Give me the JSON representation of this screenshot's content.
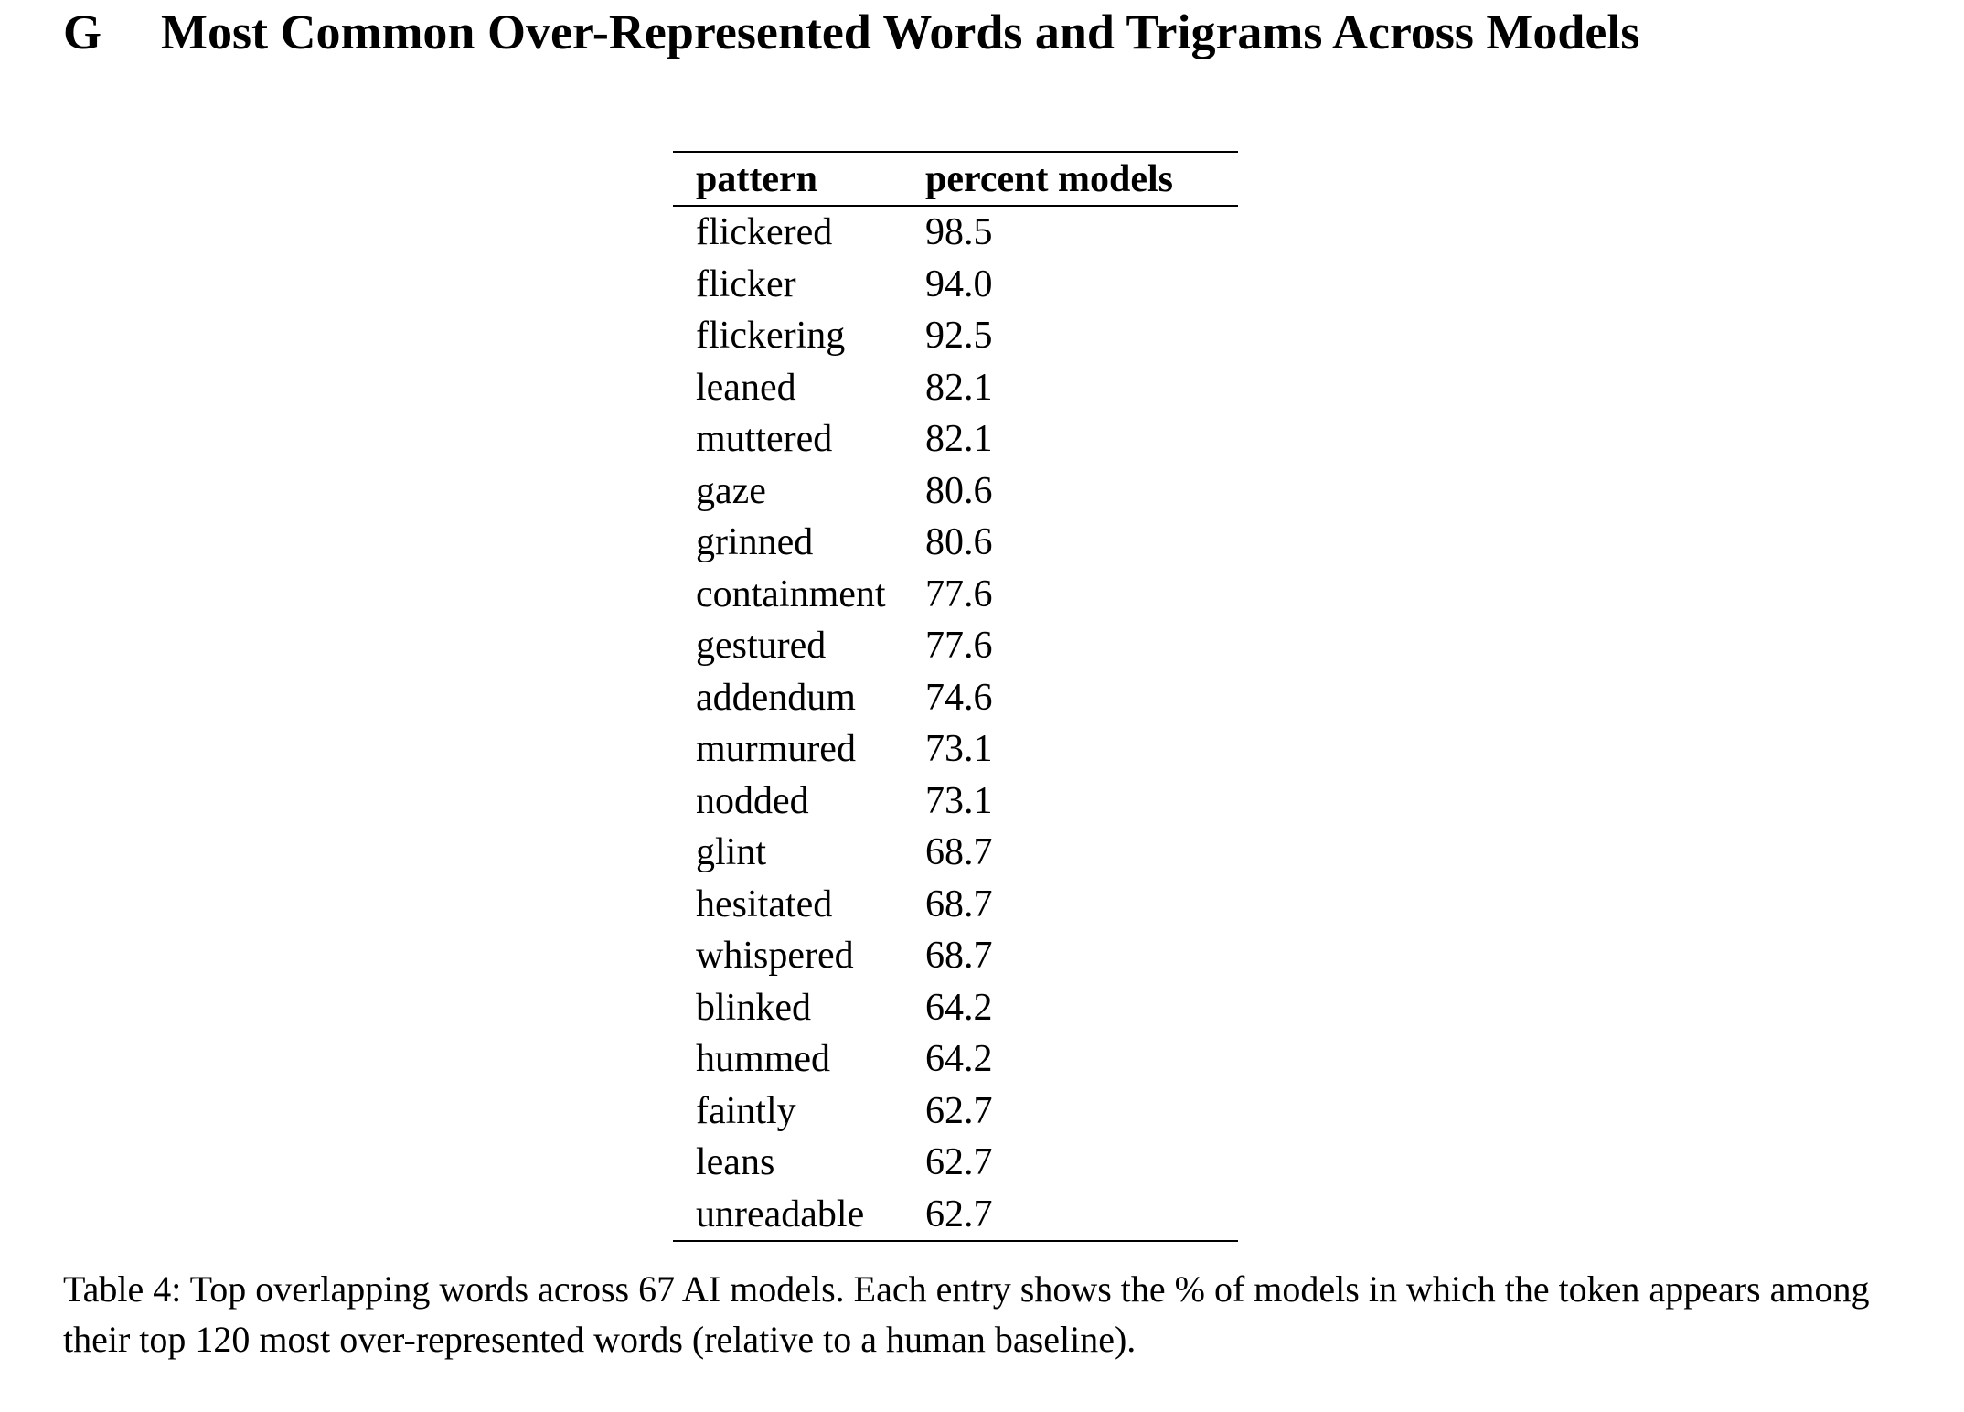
{
  "section": {
    "number": "G",
    "title": "Most Common Over-Represented Words and Trigrams Across Models"
  },
  "table": {
    "headers": [
      "pattern",
      "percent models"
    ],
    "rows": [
      [
        "flickered",
        "98.5"
      ],
      [
        "flicker",
        "94.0"
      ],
      [
        "flickering",
        "92.5"
      ],
      [
        "leaned",
        "82.1"
      ],
      [
        "muttered",
        "82.1"
      ],
      [
        "gaze",
        "80.6"
      ],
      [
        "grinned",
        "80.6"
      ],
      [
        "containment",
        "77.6"
      ],
      [
        "gestured",
        "77.6"
      ],
      [
        "addendum",
        "74.6"
      ],
      [
        "murmured",
        "73.1"
      ],
      [
        "nodded",
        "73.1"
      ],
      [
        "glint",
        "68.7"
      ],
      [
        "hesitated",
        "68.7"
      ],
      [
        "whispered",
        "68.7"
      ],
      [
        "blinked",
        "64.2"
      ],
      [
        "hummed",
        "64.2"
      ],
      [
        "faintly",
        "62.7"
      ],
      [
        "leans",
        "62.7"
      ],
      [
        "unreadable",
        "62.7"
      ]
    ]
  },
  "caption": "Table 4: Top overlapping words across 67 AI models. Each entry shows the % of models in which the token appears among their top 120 most over-represented words (relative to a human baseline)."
}
